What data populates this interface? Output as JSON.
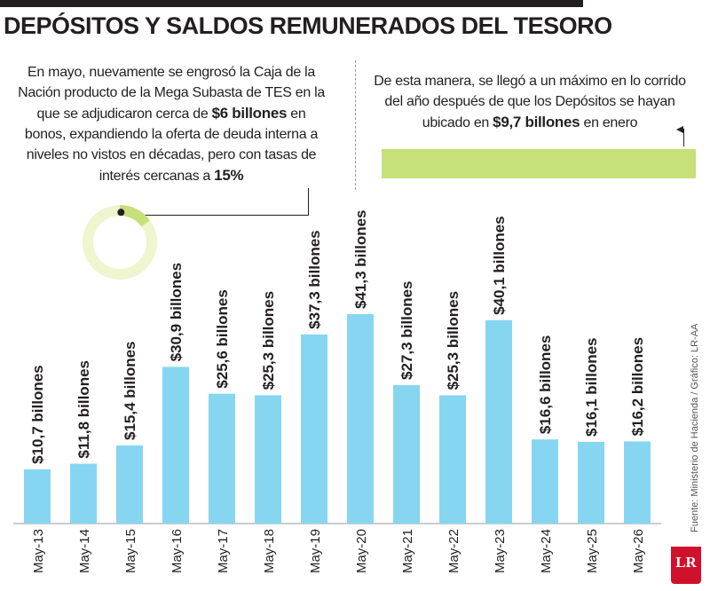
{
  "title": "DEPÓSITOS Y SALDOS REMUNERADOS DEL TESORO",
  "note_left": {
    "t1": "En mayo, nuevamente se engrosó la Caja de la Nación producto de la Mega Subasta de TES en la que se adjudicaron cerca de ",
    "b1": "$6 billones",
    "t2": " en bonos, expandiendo la oferta de deuda interna a niveles no vistos en décadas, pero con tasas de interés cercanas a ",
    "b2": "15%"
  },
  "note_right": {
    "t1": "De esta manera, se llegó a un máximo en lo corrido del año después de que los Depósitos se hayan ubicado en ",
    "b1": "$9,7 billones",
    "t2": " en enero"
  },
  "donut_percent": 15,
  "source": "Fuente: Ministerio de Hacienda / Gráfico: LR-AA",
  "logo": "LR",
  "colors": {
    "bar": "#87d6f1",
    "accent": "#c6e07a",
    "text": "#231f20",
    "logo": "#d0112b"
  },
  "chart_data": {
    "type": "bar",
    "categories": [
      "May-13",
      "May-14",
      "May-15",
      "May-16",
      "May-17",
      "May-18",
      "May-19",
      "May-20",
      "May-21",
      "May-22",
      "May-23",
      "May-24",
      "May-25",
      "May-26"
    ],
    "values": [
      10.7,
      11.8,
      15.4,
      30.9,
      25.6,
      25.3,
      37.3,
      41.3,
      27.3,
      25.3,
      40.1,
      16.6,
      16.1,
      16.2
    ],
    "data_labels": [
      "$10,7 billones",
      "$11,8 billones",
      "$15,4 billones",
      "$30,9 billones",
      "$25,6 billones",
      "$25,3 billones",
      "$37,3 billones",
      "$41,3 billones",
      "$27,3 billones",
      "$25,3 billones",
      "$40,1 billones",
      "$16,6 billones",
      "$16,1 billones",
      "$16,2 billones"
    ],
    "ylim": [
      0,
      41.3
    ],
    "grid": false,
    "title": "DEPÓSITOS Y SALDOS REMUNERADOS DEL TESORO",
    "xlabel": "",
    "ylabel": ""
  }
}
